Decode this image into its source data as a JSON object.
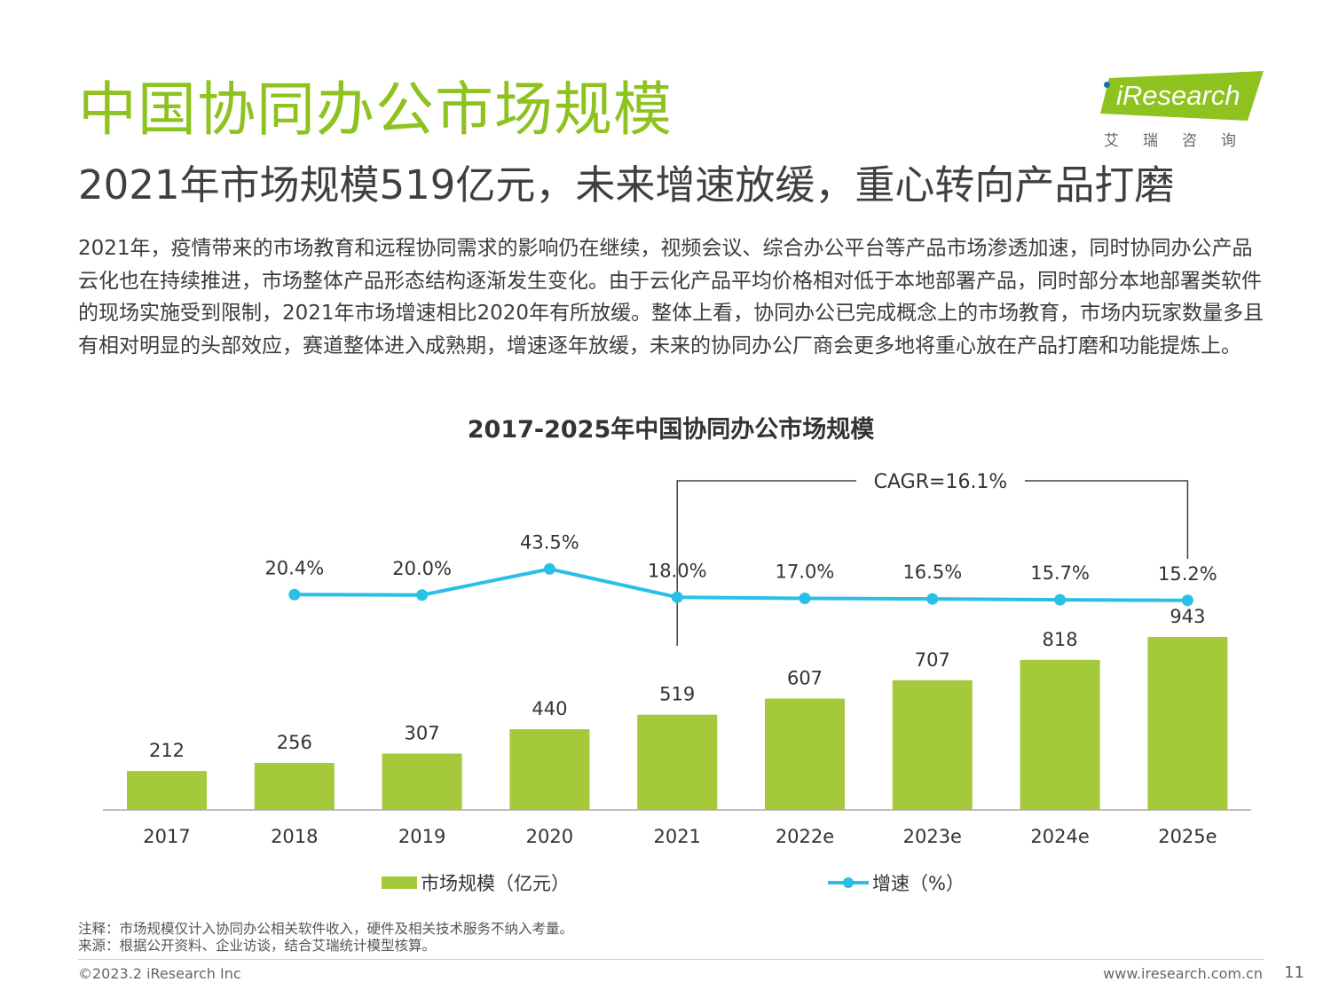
{
  "page": {
    "title": "中国协同办公市场规模",
    "subtitle": "2021年市场规模519亿元，未来增速放缓，重心转向产品打磨",
    "body": "2021年，疫情带来的市场教育和远程协同需求的影响仍在继续，视频会议、综合办公平台等产品市场渗透加速，同时协同办公产品云化也在持续推进，市场整体产品形态结构逐渐发生变化。由于云化产品平均价格相对低于本地部署产品，同时部分本地部署类软件的现场实施受到限制，2021年市场增速相比2020年有所放缓。整体上看，协同办公已完成概念上的市场教育，市场内玩家数量多且有相对明显的头部效应，赛道整体进入成熟期，增速逐年放缓，未来的协同办公厂商会更多地将重心放在产品打磨和功能提炼上。",
    "note": "注释：市场规模仅计入协同办公相关软件收入，硬件及相关技术服务不纳入考量。",
    "source": "来源：根据公开资料、企业访谈，结合艾瑞统计模型核算。",
    "copyright": "©2023.2 iResearch Inc",
    "website": "www.iresearch.com.cn",
    "page_number": "11"
  },
  "logo": {
    "name": "iResearch",
    "name_en": "Research",
    "name_cn": "艾瑞咨询"
  },
  "colors": {
    "title": "#8dc21f",
    "bar": "#a4c93a",
    "line": "#29bfe6"
  },
  "chart_data": {
    "type": "bar",
    "title": "2017-2025年中国协同办公市场规模",
    "categories": [
      "2017",
      "2018",
      "2019",
      "2020",
      "2021",
      "2022e",
      "2023e",
      "2024e",
      "2025e"
    ],
    "series": [
      {
        "name": "市场规模（亿元）",
        "type": "bar",
        "values": [
          212,
          256,
          307,
          440,
          519,
          607,
          707,
          818,
          943
        ],
        "labels": [
          "212",
          "256",
          "307",
          "440",
          "519",
          "607",
          "707",
          "818",
          "943"
        ]
      },
      {
        "name": "增速（%）",
        "type": "line",
        "values": [
          null,
          20.4,
          20.0,
          43.5,
          18.0,
          17.0,
          16.5,
          15.7,
          15.2
        ],
        "labels": [
          "",
          "20.4%",
          "20.0%",
          "43.5%",
          "18.0%",
          "17.0%",
          "16.5%",
          "15.7%",
          "15.2%"
        ]
      }
    ],
    "annotation": {
      "text": "CAGR=16.1%",
      "from": "2021",
      "to": "2025e"
    },
    "grid": false,
    "legend": "bottom"
  }
}
